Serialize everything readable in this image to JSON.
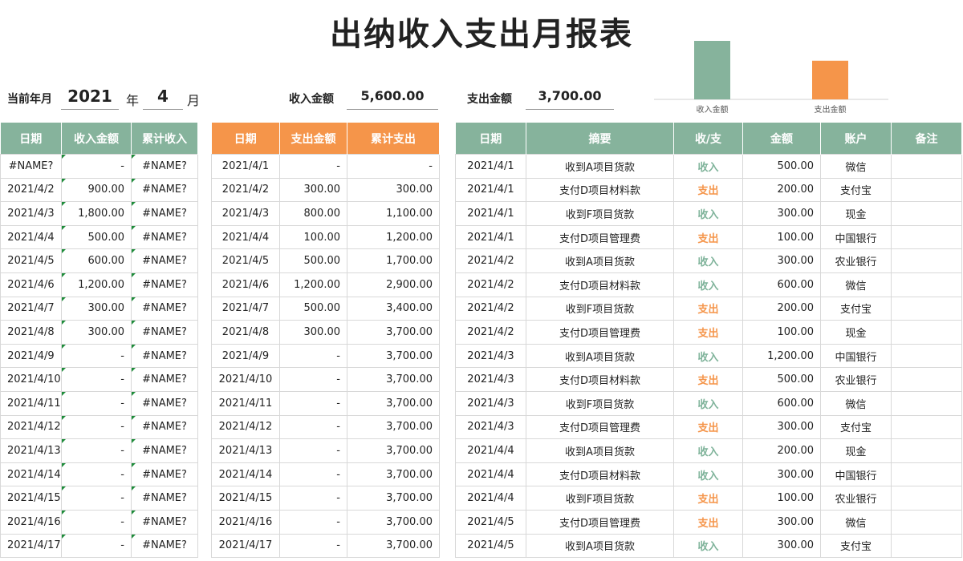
{
  "header": {
    "title": "出纳收入支出月报表",
    "period_label": "当前年月",
    "year": "2021",
    "year_unit": "年",
    "month": "4",
    "month_unit": "月",
    "income_label": "收入金额",
    "income_total": "5,600.00",
    "expense_label": "支出金额",
    "expense_total": "3,700.00"
  },
  "chart_data": {
    "type": "bar",
    "categories": [
      "收入金额",
      "支出金额"
    ],
    "values": [
      5600,
      3700
    ],
    "colors": [
      "#86b39c",
      "#f5954a"
    ]
  },
  "tables": [
    {
      "header_color": "#86b39c",
      "headers": [
        "日期",
        "收入金额",
        "累计收入"
      ],
      "rows": [
        [
          "#NAME?",
          "-",
          "#NAME?"
        ],
        [
          "2021/4/2",
          "900.00",
          "#NAME?"
        ],
        [
          "2021/4/3",
          "1,800.00",
          "#NAME?"
        ],
        [
          "2021/4/4",
          "500.00",
          "#NAME?"
        ],
        [
          "2021/4/5",
          "600.00",
          "#NAME?"
        ],
        [
          "2021/4/6",
          "1,200.00",
          "#NAME?"
        ],
        [
          "2021/4/7",
          "300.00",
          "#NAME?"
        ],
        [
          "2021/4/8",
          "300.00",
          "#NAME?"
        ],
        [
          "2021/4/9",
          "-",
          "#NAME?"
        ],
        [
          "2021/4/10",
          "-",
          "#NAME?"
        ],
        [
          "2021/4/11",
          "-",
          "#NAME?"
        ],
        [
          "2021/4/12",
          "-",
          "#NAME?"
        ],
        [
          "2021/4/13",
          "-",
          "#NAME?"
        ],
        [
          "2021/4/14",
          "-",
          "#NAME?"
        ],
        [
          "2021/4/15",
          "-",
          "#NAME?"
        ],
        [
          "2021/4/16",
          "-",
          "#NAME?"
        ],
        [
          "2021/4/17",
          "-",
          "#NAME?"
        ]
      ]
    },
    {
      "header_color": "#f5954a",
      "headers": [
        "日期",
        "支出金额",
        "累计支出"
      ],
      "rows": [
        [
          "2021/4/1",
          "-",
          "-"
        ],
        [
          "2021/4/2",
          "300.00",
          "300.00"
        ],
        [
          "2021/4/3",
          "800.00",
          "1,100.00"
        ],
        [
          "2021/4/4",
          "100.00",
          "1,200.00"
        ],
        [
          "2021/4/5",
          "500.00",
          "1,700.00"
        ],
        [
          "2021/4/6",
          "1,200.00",
          "2,900.00"
        ],
        [
          "2021/4/7",
          "500.00",
          "3,400.00"
        ],
        [
          "2021/4/8",
          "300.00",
          "3,700.00"
        ],
        [
          "2021/4/9",
          "-",
          "3,700.00"
        ],
        [
          "2021/4/10",
          "-",
          "3,700.00"
        ],
        [
          "2021/4/11",
          "-",
          "3,700.00"
        ],
        [
          "2021/4/12",
          "-",
          "3,700.00"
        ],
        [
          "2021/4/13",
          "-",
          "3,700.00"
        ],
        [
          "2021/4/14",
          "-",
          "3,700.00"
        ],
        [
          "2021/4/15",
          "-",
          "3,700.00"
        ],
        [
          "2021/4/16",
          "-",
          "3,700.00"
        ],
        [
          "2021/4/17",
          "-",
          "3,700.00"
        ]
      ]
    },
    {
      "header_color": "#86b39c",
      "value_colors": {
        "收入": "#7fb39a",
        "支出": "#f5954a"
      },
      "headers": [
        "日期",
        "摘要",
        "收/支",
        "金额",
        "账户",
        "备注"
      ],
      "rows": [
        [
          "2021/4/1",
          "收到A项目货款",
          "收入",
          "500.00",
          "微信"
        ],
        [
          "2021/4/1",
          "支付D项目材料款",
          "支出",
          "200.00",
          "支付宝"
        ],
        [
          "2021/4/1",
          "收到F项目货款",
          "收入",
          "300.00",
          "现金"
        ],
        [
          "2021/4/1",
          "支付D项目管理费",
          "支出",
          "100.00",
          "中国银行"
        ],
        [
          "2021/4/2",
          "收到A项目货款",
          "收入",
          "300.00",
          "农业银行"
        ],
        [
          "2021/4/2",
          "支付D项目材料款",
          "收入",
          "600.00",
          "微信"
        ],
        [
          "2021/4/2",
          "收到F项目货款",
          "支出",
          "200.00",
          "支付宝"
        ],
        [
          "2021/4/2",
          "支付D项目管理费",
          "支出",
          "100.00",
          "现金"
        ],
        [
          "2021/4/3",
          "收到A项目货款",
          "收入",
          "1,200.00",
          "中国银行"
        ],
        [
          "2021/4/3",
          "支付D项目材料款",
          "支出",
          "500.00",
          "农业银行"
        ],
        [
          "2021/4/3",
          "收到F项目货款",
          "收入",
          "600.00",
          "微信"
        ],
        [
          "2021/4/3",
          "支付D项目管理费",
          "支出",
          "300.00",
          "支付宝"
        ],
        [
          "2021/4/4",
          "收到A项目货款",
          "收入",
          "200.00",
          "现金"
        ],
        [
          "2021/4/4",
          "支付D项目材料款",
          "收入",
          "300.00",
          "中国银行"
        ],
        [
          "2021/4/4",
          "收到F项目货款",
          "支出",
          "100.00",
          "农业银行"
        ],
        [
          "2021/4/5",
          "支付D项目管理费",
          "支出",
          "300.00",
          "微信"
        ],
        [
          "2021/4/5",
          "收到A项目货款",
          "收入",
          "300.00",
          "支付宝"
        ]
      ]
    }
  ]
}
